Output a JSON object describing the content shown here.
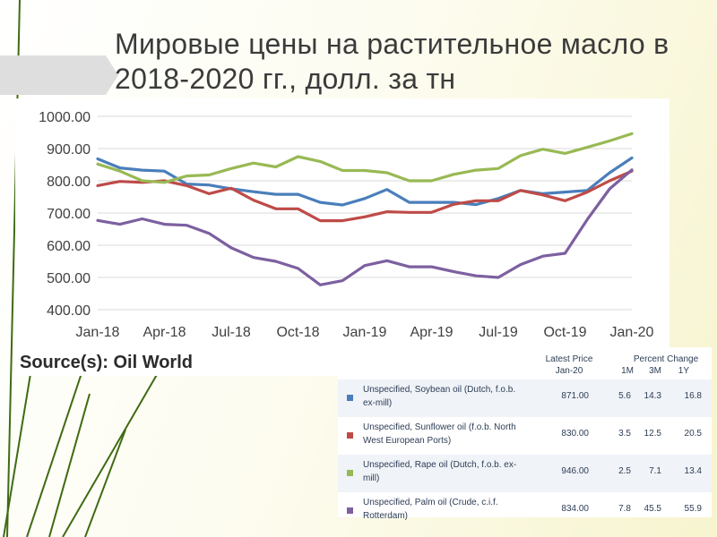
{
  "slide": {
    "title": "Мировые цены на растительное масло в 2018-2020 гг., долл. за тн",
    "source": "Source(s): Oil World"
  },
  "legend": {
    "header_price": "Latest Price",
    "header_price_sub": "Jan-20",
    "header_change": "Percent Change",
    "header_1m": "1M",
    "header_3m": "3M",
    "header_1y": "1Y",
    "rows": [
      {
        "name": "Unspecified, Soybean oil (Dutch, f.o.b. ex-mill)",
        "price": "871.00",
        "m1": "5.6",
        "m3": "14.3",
        "y1": "16.8",
        "color": "#4a7ebb"
      },
      {
        "name": "Unspecified, Sunflower oil (f.o.b. North West European Ports)",
        "price": "830.00",
        "m1": "3.5",
        "m3": "12.5",
        "y1": "20.5",
        "color": "#be4b48"
      },
      {
        "name": "Unspecified, Rape oil (Dutch, f.o.b. ex-mill)",
        "price": "946.00",
        "m1": "2.5",
        "m3": "7.1",
        "y1": "13.4",
        "color": "#98b954"
      },
      {
        "name": "Unspecified, Palm oil (Crude, c.i.f. Rotterdam)",
        "price": "834.00",
        "m1": "7.8",
        "m3": "45.5",
        "y1": "55.9",
        "color": "#7d60a0"
      }
    ]
  },
  "chart_data": {
    "type": "line",
    "x_ticks": [
      "Jan-18",
      "Apr-18",
      "Jul-18",
      "Oct-18",
      "Jan-19",
      "Apr-19",
      "Jul-19",
      "Oct-19",
      "Jan-20"
    ],
    "y_ticks": [
      "1000.00",
      "900.00",
      "800.00",
      "700.00",
      "600.00",
      "500.00",
      "400.00"
    ],
    "ylim": [
      400,
      1000
    ],
    "x": [
      "Jan-18",
      "Feb-18",
      "Mar-18",
      "Apr-18",
      "May-18",
      "Jun-18",
      "Jul-18",
      "Aug-18",
      "Sep-18",
      "Oct-18",
      "Nov-18",
      "Dec-18",
      "Jan-19",
      "Feb-19",
      "Mar-19",
      "Apr-19",
      "May-19",
      "Jun-19",
      "Jul-19",
      "Aug-19",
      "Sep-19",
      "Oct-19",
      "Nov-19",
      "Dec-19",
      "Jan-20"
    ],
    "grid": true,
    "series": [
      {
        "name": "Unspecified, Soybean oil (Dutch, f.o.b. ex-mill)",
        "color": "#4a7ebb",
        "values": [
          868,
          840,
          833,
          830,
          790,
          787,
          775,
          766,
          758,
          758,
          733,
          725,
          745,
          773,
          733,
          733,
          733,
          726,
          745,
          770,
          760,
          765,
          770,
          825,
          871
        ]
      },
      {
        "name": "Unspecified, Sunflower oil (f.o.b. North West European Ports)",
        "color": "#be4b48",
        "values": [
          785,
          798,
          795,
          800,
          785,
          760,
          777,
          740,
          713,
          713,
          676,
          676,
          688,
          704,
          702,
          702,
          727,
          738,
          738,
          770,
          756,
          738,
          765,
          800,
          830
        ]
      },
      {
        "name": "Unspecified, Rape oil (Dutch, f.o.b. ex-mill)",
        "color": "#98b954",
        "values": [
          852,
          830,
          800,
          795,
          815,
          818,
          838,
          855,
          843,
          875,
          860,
          832,
          832,
          825,
          800,
          800,
          820,
          833,
          838,
          878,
          898,
          885,
          904,
          924,
          946
        ]
      },
      {
        "name": "Unspecified, Palm oil (Crude, c.i.f. Rotterdam)",
        "color": "#7d60a0",
        "values": [
          677,
          665,
          682,
          665,
          662,
          637,
          592,
          562,
          550,
          528,
          477,
          490,
          537,
          552,
          533,
          533,
          518,
          505,
          500,
          540,
          566,
          575,
          680,
          775,
          834
        ]
      }
    ]
  }
}
